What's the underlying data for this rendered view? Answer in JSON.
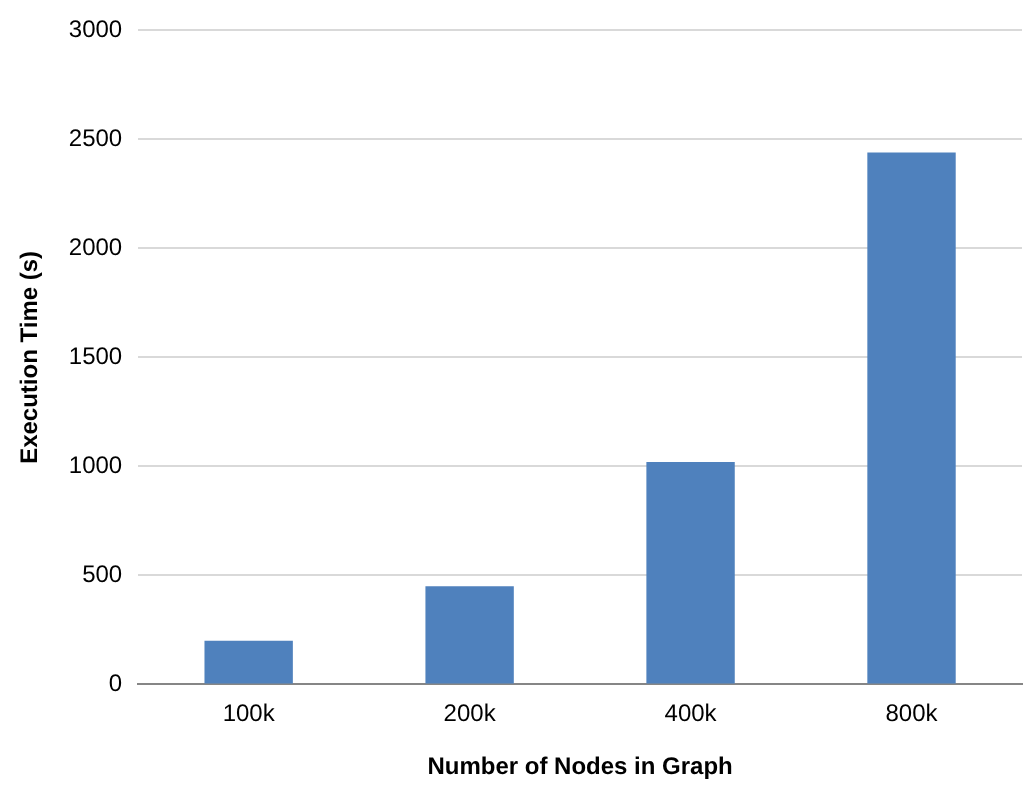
{
  "chart_data": {
    "type": "bar",
    "xlabel": "Number of Nodes in Graph",
    "ylabel": "Execution Time (s)",
    "categories": [
      "100k",
      "200k",
      "400k",
      "800k"
    ],
    "values": [
      200,
      450,
      1020,
      2440
    ],
    "color": "#4f81bd",
    "ylim": [
      0,
      3000
    ],
    "yticks": [
      0,
      500,
      1000,
      1500,
      2000,
      2500,
      3000
    ],
    "grid": "y",
    "legend": false
  }
}
